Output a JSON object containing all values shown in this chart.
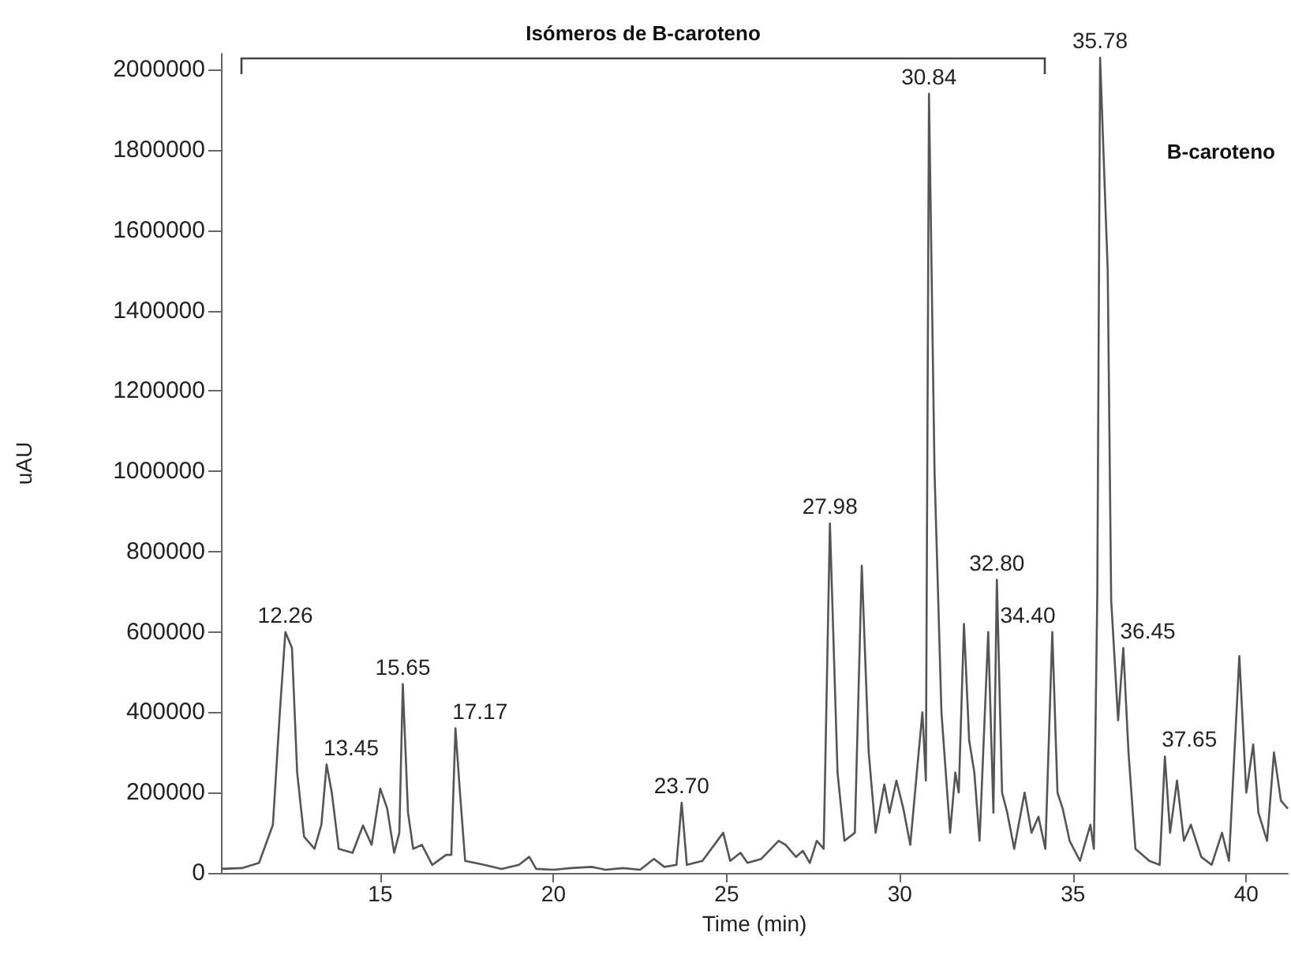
{
  "chart_data": {
    "type": "line",
    "xlabel": "Time (min)",
    "ylabel": "uAU",
    "xlim": [
      10.4,
      41.2
    ],
    "xticks": [
      15,
      20,
      25,
      30,
      35,
      40
    ],
    "ylim": [
      0,
      2040000
    ],
    "yticks": [
      0,
      200000,
      400000,
      600000,
      800000,
      1000000,
      1200000,
      1400000,
      1600000,
      1800000,
      2000000
    ],
    "grid": false,
    "marker": "none",
    "line_style": "solid",
    "annotations": [
      "Isómeros de B-caroteno",
      {
        "text": "12.26",
        "x": 12.26,
        "y": 600000
      },
      {
        "text": "13.45",
        "x": 13.45,
        "y": 270000
      },
      {
        "text": "15.65",
        "x": 15.65,
        "y": 470000
      },
      {
        "text": "17.17",
        "x": 17.17,
        "y": 360000
      },
      {
        "text": "23.70",
        "x": 23.7,
        "y": 175000
      },
      {
        "text": "27.98",
        "x": 27.98,
        "y": 870000
      },
      {
        "text": "30.84",
        "x": 30.84,
        "y": 1940000
      },
      {
        "text": "32.80",
        "x": 32.8,
        "y": 730000
      },
      {
        "text": "34.40",
        "x": 34.4,
        "y": 600000
      },
      {
        "text": "35.78",
        "x": 35.78,
        "y": 2030000
      },
      {
        "text": "36.45",
        "x": 36.45,
        "y": 560000
      },
      {
        "text": "37.65",
        "x": 37.65,
        "y": 290000
      },
      "B-caroteno"
    ],
    "series": [
      {
        "color": "#555555",
        "x": [
          10.4,
          11.0,
          11.5,
          11.9,
          12.1,
          12.26,
          12.45,
          12.6,
          12.8,
          13.1,
          13.3,
          13.45,
          13.6,
          13.8,
          14.2,
          14.5,
          14.75,
          15.0,
          15.2,
          15.4,
          15.55,
          15.65,
          15.8,
          15.95,
          16.2,
          16.5,
          16.9,
          17.05,
          17.17,
          17.3,
          17.45,
          18.0,
          18.5,
          19.0,
          19.3,
          19.5,
          20.0,
          20.5,
          21.1,
          21.5,
          22.0,
          22.5,
          22.9,
          23.2,
          23.55,
          23.7,
          23.85,
          24.3,
          24.9,
          25.1,
          25.4,
          25.6,
          26.0,
          26.5,
          26.7,
          27.0,
          27.2,
          27.4,
          27.6,
          27.8,
          27.98,
          28.2,
          28.4,
          28.7,
          28.9,
          29.1,
          29.3,
          29.55,
          29.7,
          29.9,
          30.1,
          30.3,
          30.5,
          30.65,
          30.75,
          30.84,
          31.0,
          31.2,
          31.45,
          31.6,
          31.7,
          31.85,
          32.0,
          32.15,
          32.3,
          32.55,
          32.7,
          32.8,
          32.95,
          33.1,
          33.3,
          33.6,
          33.8,
          34.0,
          34.2,
          34.4,
          34.55,
          34.7,
          34.9,
          35.2,
          35.5,
          35.6,
          35.7,
          35.78,
          36.0,
          36.1,
          36.3,
          36.45,
          36.6,
          36.8,
          37.2,
          37.5,
          37.65,
          37.8,
          38.0,
          38.2,
          38.4,
          38.7,
          39.0,
          39.3,
          39.5,
          39.8,
          40.0,
          40.2,
          40.35,
          40.6,
          40.8,
          41.0,
          41.2
        ],
        "values": [
          10000,
          12000,
          25000,
          120000,
          400000,
          600000,
          560000,
          250000,
          90000,
          60000,
          120000,
          270000,
          200000,
          60000,
          50000,
          118000,
          70000,
          210000,
          160000,
          50000,
          100000,
          470000,
          150000,
          60000,
          70000,
          20000,
          45000,
          45000,
          360000,
          200000,
          30000,
          20000,
          10000,
          20000,
          40000,
          10000,
          8000,
          12000,
          15000,
          8000,
          12000,
          8000,
          35000,
          15000,
          20000,
          175000,
          20000,
          30000,
          100000,
          30000,
          50000,
          25000,
          35000,
          80000,
          70000,
          40000,
          55000,
          25000,
          80000,
          60000,
          870000,
          250000,
          80000,
          100000,
          765000,
          300000,
          100000,
          220000,
          150000,
          230000,
          160000,
          70000,
          260000,
          400000,
          230000,
          1940000,
          1000000,
          400000,
          100000,
          250000,
          200000,
          620000,
          330000,
          250000,
          80000,
          600000,
          150000,
          730000,
          200000,
          150000,
          60000,
          200000,
          100000,
          140000,
          60000,
          600000,
          200000,
          160000,
          80000,
          30000,
          120000,
          60000,
          700000,
          2030000,
          1500000,
          680000,
          380000,
          560000,
          300000,
          60000,
          30000,
          20000,
          290000,
          100000,
          230000,
          80000,
          120000,
          40000,
          20000,
          100000,
          30000,
          540000,
          200000,
          320000,
          150000,
          80000,
          300000,
          180000,
          160000
        ]
      }
    ]
  }
}
